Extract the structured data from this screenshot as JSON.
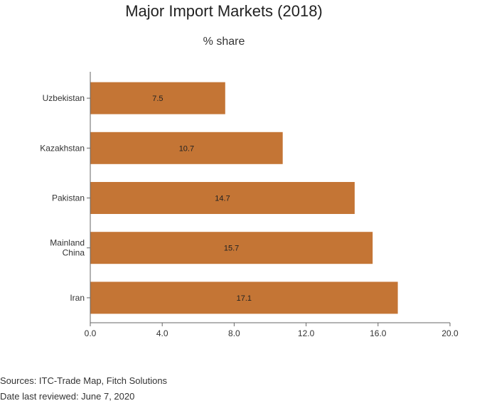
{
  "chart_data": {
    "type": "bar",
    "orientation": "horizontal",
    "title": "Major Import Markets (2018)",
    "subtitle": "% share",
    "categories": [
      "Uzbekistan",
      "Kazakhstan",
      "Pakistan",
      "Mainland China",
      "Iran"
    ],
    "category_lines": [
      [
        "Uzbekistan"
      ],
      [
        "Kazakhstan"
      ],
      [
        "Pakistan"
      ],
      [
        "Mainland",
        "China"
      ],
      [
        "Iran"
      ]
    ],
    "values": [
      7.5,
      10.7,
      14.7,
      15.7,
      17.1
    ],
    "data_labels": [
      "7.5",
      "10.7",
      "14.7",
      "15.7",
      "17.1"
    ],
    "xlim": [
      0,
      20
    ],
    "xticks": [
      0,
      4,
      8,
      12,
      16,
      20
    ],
    "xtick_labels": [
      "0.0",
      "4.0",
      "8.0",
      "12.0",
      "16.0",
      "20.0"
    ],
    "xlabel": "",
    "ylabel": "",
    "grid": false,
    "legend": "none",
    "bar_color": "#C47535"
  },
  "footer": {
    "sources": "Sources: ITC-Trade Map, Fitch Solutions",
    "reviewed": "Date last reviewed: June 7, 2020"
  }
}
